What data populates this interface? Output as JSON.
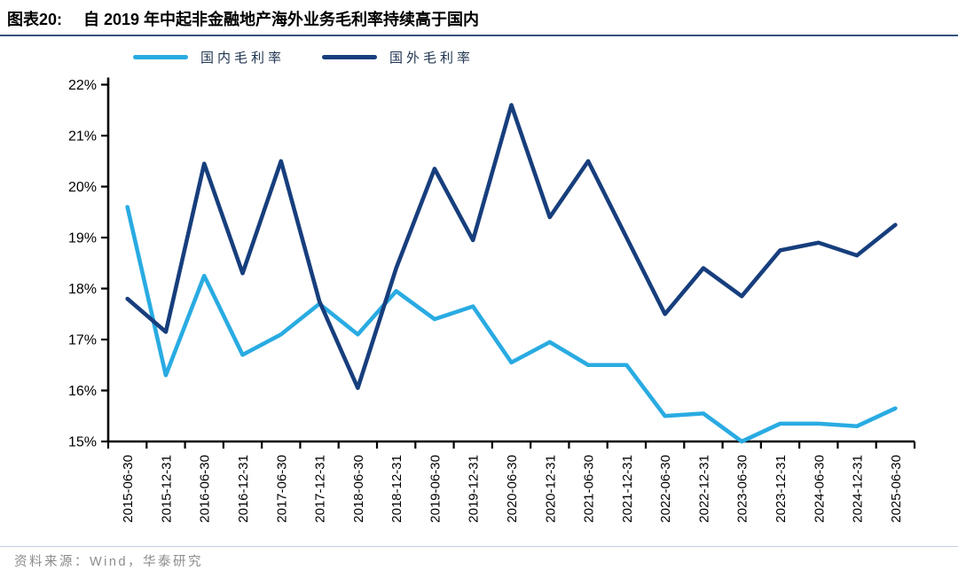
{
  "header": {
    "label": "图表20:",
    "title": "自 2019 年中起非金融地产海外业务毛利率持续高于国内"
  },
  "footer": {
    "source": "资料来源：Wind，华泰研究"
  },
  "colors": {
    "domestic_line": "#29abe2",
    "overseas_line": "#173e7d",
    "title_rule": "#35547e",
    "footer_rule": "#c3d0e0",
    "axis": "#000000",
    "legend_text": "#1f3450",
    "source_text": "#8c8c8c"
  },
  "chart_data": {
    "type": "line",
    "title": "自 2019 年中起非金融地产海外业务毛利率持续高于国内",
    "categories": [
      "2015-06-30",
      "2015-12-31",
      "2016-06-30",
      "2016-12-31",
      "2017-06-30",
      "2017-12-31",
      "2018-06-30",
      "2018-12-31",
      "2019-06-30",
      "2019-12-31",
      "2020-06-30",
      "2020-12-31",
      "2021-06-30",
      "2021-12-31",
      "2022-06-30",
      "2022-12-31",
      "2023-06-30",
      "2023-12-31",
      "2024-06-30",
      "2024-12-31",
      "2025-06-30"
    ],
    "series": [
      {
        "name": "国内毛利率",
        "color": "#29abe2",
        "values": [
          19.6,
          16.3,
          18.25,
          16.7,
          17.1,
          17.7,
          17.1,
          17.95,
          17.4,
          17.65,
          16.55,
          16.95,
          16.5,
          16.5,
          15.5,
          15.55,
          15.0,
          15.35,
          15.35,
          15.3,
          15.65
        ]
      },
      {
        "name": "国外毛利率",
        "color": "#173e7d",
        "values": [
          17.8,
          17.15,
          20.45,
          18.3,
          20.5,
          17.75,
          16.05,
          18.4,
          20.35,
          18.95,
          21.6,
          19.4,
          20.5,
          19.0,
          17.5,
          18.4,
          17.85,
          18.75,
          18.9,
          18.65,
          19.25
        ]
      }
    ],
    "xlabel": "",
    "ylabel": "",
    "ylim": [
      15,
      22
    ],
    "yticks": [
      "15%",
      "16%",
      "17%",
      "18%",
      "19%",
      "20%",
      "21%",
      "22%"
    ],
    "grid": false,
    "legend_position": "top-left"
  }
}
